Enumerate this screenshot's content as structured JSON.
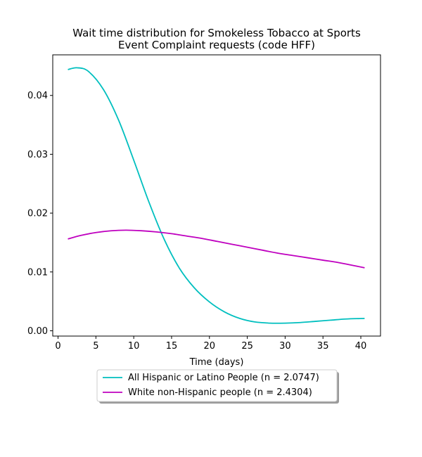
{
  "chart_data": {
    "type": "line",
    "title": [
      "Wait time distribution  for Smokeless Tobacco at Sports",
      "Event Complaint  requests (code HFF)"
    ],
    "xlabel": "Time (days)",
    "ylabel": "",
    "xlim": [
      -0.7,
      42.6
    ],
    "ylim": [
      -0.0009,
      0.0469
    ],
    "xticks": [
      0,
      5,
      10,
      15,
      20,
      25,
      30,
      35,
      40
    ],
    "yticks": [
      0.0,
      0.01,
      0.02,
      0.03,
      0.04
    ],
    "ytick_labels": [
      "0.00",
      "0.01",
      "0.02",
      "0.03",
      "0.04"
    ],
    "grid": false,
    "legend_position": "below",
    "series": [
      {
        "name": "All Hispanic or Latino People (n = 2.0747)",
        "color": "#00bfbf",
        "x": [
          1.3,
          2.5,
          4,
          6,
          8,
          10,
          12,
          14,
          16,
          18,
          20,
          22,
          24,
          26,
          28,
          30,
          32,
          34,
          36,
          38,
          40.5
        ],
        "y": [
          0.0444,
          0.0447,
          0.0441,
          0.041,
          0.0358,
          0.029,
          0.0219,
          0.0156,
          0.0107,
          0.0073,
          0.0049,
          0.0032,
          0.0021,
          0.0015,
          0.0013,
          0.0013,
          0.0014,
          0.0016,
          0.0018,
          0.002,
          0.0021
        ]
      },
      {
        "name": "White non-Hispanic people (n = 2.4304)",
        "color": "#bf00bf",
        "x": [
          1.3,
          3,
          5,
          7,
          9,
          11,
          13,
          15,
          17,
          19,
          21,
          23,
          25,
          27,
          29,
          31,
          33,
          35,
          37,
          39,
          40.5
        ],
        "y": [
          0.0156,
          0.0162,
          0.0167,
          0.017,
          0.0171,
          0.017,
          0.0168,
          0.0165,
          0.0161,
          0.0157,
          0.0152,
          0.0147,
          0.0142,
          0.0137,
          0.0132,
          0.0128,
          0.0124,
          0.012,
          0.0116,
          0.0111,
          0.0107
        ]
      }
    ]
  }
}
